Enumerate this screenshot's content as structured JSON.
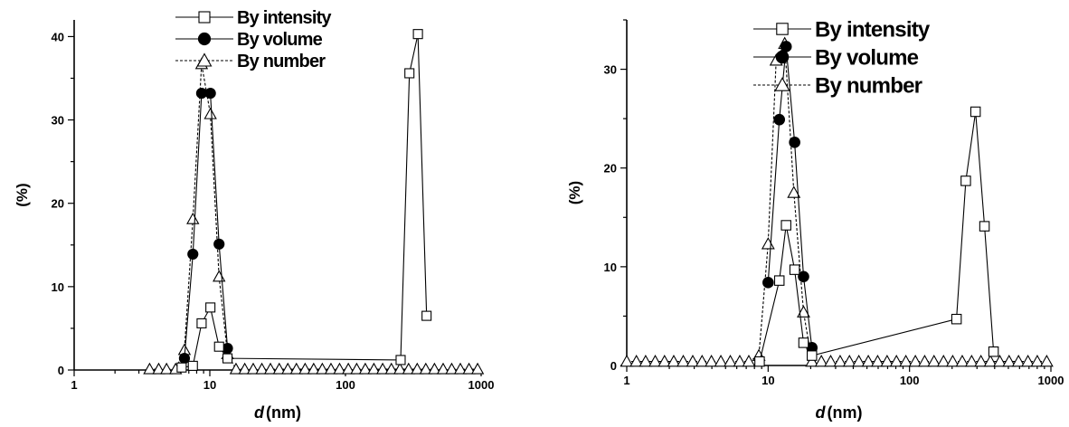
{
  "chart_data": [
    {
      "type": "scatter",
      "xscale": "log",
      "xlim": [
        1,
        1000
      ],
      "ylim": [
        0,
        42
      ],
      "xticks": [
        1,
        10,
        100,
        1000
      ],
      "xtick_labels": [
        "1",
        "10",
        "100",
        "1000"
      ],
      "yticks": [
        0,
        10,
        20,
        30,
        40
      ],
      "ytick_labels": [
        "0",
        "10",
        "20",
        "30",
        "40"
      ],
      "xlabel_symbol": "d",
      "xlabel_unit": "(nm)",
      "ylabel": "(%)",
      "legend_position": "top-center",
      "series": [
        {
          "name": "By intensity",
          "marker": "open-square",
          "line": "solid",
          "color": "#000000",
          "x": [
            6.2,
            7.5,
            8.7,
            10.1,
            11.7,
            13.5,
            255,
            296,
            342,
            396
          ],
          "y": [
            0.3,
            0.5,
            5.6,
            7.5,
            2.8,
            1.4,
            1.2,
            35.6,
            40.3,
            6.5
          ]
        },
        {
          "name": "By volume",
          "marker": "filled-circle",
          "line": "solid",
          "color": "#000000",
          "x": [
            6.5,
            7.5,
            8.7,
            10.1,
            11.7,
            13.5
          ],
          "y": [
            1.4,
            13.9,
            33.2,
            33.2,
            15.1,
            2.6
          ]
        },
        {
          "name": "By number",
          "marker": "open-triangle",
          "line": "dash",
          "color": "#000000",
          "x": [
            3.6,
            4.2,
            4.8,
            5.6,
            6.5,
            7.5,
            8.7,
            10.1,
            11.7,
            13.5,
            15.6,
            18.1,
            20.9,
            24.2,
            28.0,
            32.5,
            37.6,
            43.5,
            50.4,
            58.3,
            67.5,
            78.2,
            90.5,
            105,
            121,
            140,
            162,
            188,
            218,
            252,
            292,
            338,
            391,
            453,
            525,
            607,
            703,
            814,
            942
          ],
          "y": [
            0.1,
            0.1,
            0.1,
            0.1,
            2.4,
            18.1,
            36.7,
            30.7,
            11.2,
            1.9,
            0.1,
            0.1,
            0.1,
            0.1,
            0.1,
            0.1,
            0.1,
            0.1,
            0.1,
            0.1,
            0.1,
            0.1,
            0.1,
            0.1,
            0.1,
            0.1,
            0.1,
            0.1,
            0.1,
            0.1,
            0.1,
            0.1,
            0.1,
            0.1,
            0.1,
            0.1,
            0.1,
            0.1,
            0.1
          ]
        }
      ]
    },
    {
      "type": "scatter",
      "xscale": "log",
      "xlim": [
        1,
        1000
      ],
      "ylim": [
        0,
        35
      ],
      "xticks": [
        1,
        10,
        100,
        1000
      ],
      "xtick_labels": [
        "1",
        "10",
        "100",
        "1000"
      ],
      "yticks": [
        0,
        10,
        20,
        30
      ],
      "ytick_labels": [
        "0",
        "10",
        "20",
        "30"
      ],
      "xlabel_symbol": "d",
      "xlabel_unit": "(nm)",
      "ylabel": "(%)",
      "legend_position": "top-center",
      "series": [
        {
          "name": "By intensity",
          "marker": "open-square",
          "line": "solid",
          "color": "#000000",
          "x": [
            8.7,
            12.0,
            13.4,
            15.4,
            17.8,
            20.4,
            215,
            250,
            293,
            339,
            393
          ],
          "y": [
            0.4,
            8.6,
            14.2,
            9.7,
            2.3,
            1.0,
            4.7,
            18.7,
            25.7,
            14.1,
            1.4
          ]
        },
        {
          "name": "By volume",
          "marker": "filled-circle",
          "line": "solid",
          "color": "#000000",
          "x": [
            10.0,
            12.0,
            13.4,
            15.4,
            17.8,
            20.4
          ],
          "y": [
            8.4,
            24.9,
            32.3,
            22.6,
            9.0,
            1.8
          ]
        },
        {
          "name": "By number",
          "marker": "open-triangle",
          "line": "dash",
          "color": "#000000",
          "x": [
            1.0,
            1.17,
            1.36,
            1.59,
            1.85,
            2.15,
            2.51,
            2.93,
            3.41,
            3.97,
            4.63,
            5.4,
            6.3,
            7.3,
            8.6,
            10.0,
            11.4,
            13.1,
            15.2,
            17.8,
            20.4,
            23.8,
            27.7,
            32.3,
            37.6,
            43.8,
            51.1,
            59.5,
            69.4,
            80.8,
            94.2,
            110,
            128,
            149,
            174,
            202,
            236,
            275,
            320,
            373,
            435,
            506,
            590,
            688,
            801,
            934
          ],
          "y": [
            0.4,
            0.4,
            0.4,
            0.4,
            0.4,
            0.4,
            0.4,
            0.4,
            0.4,
            0.4,
            0.4,
            0.4,
            0.4,
            0.4,
            1.0,
            12.3,
            30.9,
            32.6,
            17.5,
            5.4,
            0.4,
            0.4,
            0.4,
            0.4,
            0.4,
            0.4,
            0.4,
            0.4,
            0.4,
            0.4,
            0.4,
            0.4,
            0.4,
            0.4,
            0.4,
            0.4,
            0.4,
            0.4,
            0.4,
            0.4,
            0.4,
            0.4,
            0.4,
            0.4,
            0.4,
            0.4
          ]
        }
      ]
    }
  ]
}
